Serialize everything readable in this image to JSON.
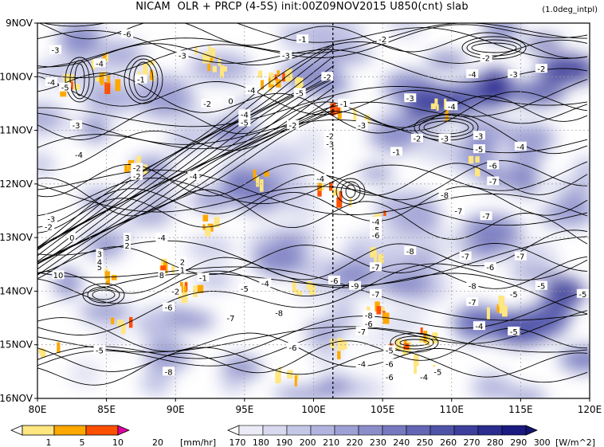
{
  "chart_data": {
    "type": "heatmap",
    "title": "NICAM  OLR + PRCP (4-5S) init:00Z09NOV2015 U850(cnt) slab",
    "note": "(1.0deg_intpl)",
    "x": {
      "min": 80,
      "max": 120,
      "ticks": [
        80,
        85,
        90,
        95,
        100,
        105,
        110,
        115,
        120
      ],
      "tick_labels": [
        "80E",
        "85E",
        "90E",
        "95E",
        "100E",
        "105E",
        "110E",
        "115E",
        "120E"
      ]
    },
    "y": {
      "dates": [
        "9NOV",
        "10NOV",
        "11NOV",
        "12NOV",
        "13NOV",
        "14NOV",
        "15NOV",
        "16NOV"
      ],
      "tick_labels": [
        "9NOV",
        "10NOV",
        "11NOV",
        "12NOV",
        "13NOV",
        "14NOV",
        "15NOV",
        "16NOV"
      ]
    },
    "reference_longitude": 101.4,
    "prcp_colorbar": {
      "levels": [
        "1",
        "5",
        "10",
        "20"
      ],
      "unit": "[mm/hr]",
      "colors": [
        "#ffe680",
        "#ffa800",
        "#ff4f00",
        "#e0009e"
      ]
    },
    "olr_colorbar": {
      "levels": [
        "170",
        "180",
        "190",
        "200",
        "210",
        "220",
        "230",
        "240",
        "250",
        "260",
        "270",
        "280",
        "290",
        "300"
      ],
      "unit": "[W/m^2]",
      "colors": [
        "#ebebf7",
        "#d8d9ef",
        "#c5c7e7",
        "#b1b4de",
        "#9da0d4",
        "#8a8dca",
        "#7679bf",
        "#6266b4",
        "#4f53a8",
        "#3c3f9c",
        "#2a2c8e",
        "#1a1b80"
      ]
    },
    "contour_labels": [
      {
        "lon": 86.5,
        "day": 9.2,
        "text": "-6"
      },
      {
        "lon": 81.3,
        "day": 9.5,
        "text": "-3"
      },
      {
        "lon": 84.5,
        "day": 9.75,
        "text": "-4"
      },
      {
        "lon": 81.0,
        "day": 10.1,
        "text": "-4"
      },
      {
        "lon": 82.0,
        "day": 10.2,
        "text": "-5"
      },
      {
        "lon": 87.5,
        "day": 10.05,
        "text": "-1"
      },
      {
        "lon": 90.5,
        "day": 9.6,
        "text": "-3"
      },
      {
        "lon": 95.5,
        "day": 10.25,
        "text": "-4"
      },
      {
        "lon": 92.3,
        "day": 10.5,
        "text": "-2"
      },
      {
        "lon": 94.0,
        "day": 10.45,
        "text": "0"
      },
      {
        "lon": 95.0,
        "day": 10.7,
        "text": "-4"
      },
      {
        "lon": 95.0,
        "day": 10.85,
        "text": "-5"
      },
      {
        "lon": 98.0,
        "day": 9.6,
        "text": "-3"
      },
      {
        "lon": 99.2,
        "day": 9.3,
        "text": "-1"
      },
      {
        "lon": 99.0,
        "day": 10.3,
        "text": "-5"
      },
      {
        "lon": 101.0,
        "day": 10.0,
        "text": "-2"
      },
      {
        "lon": 102.2,
        "day": 10.5,
        "text": "-1"
      },
      {
        "lon": 98.5,
        "day": 10.9,
        "text": "-2"
      },
      {
        "lon": 101.2,
        "day": 11.1,
        "text": "-2"
      },
      {
        "lon": 101.2,
        "day": 11.25,
        "text": "-3"
      },
      {
        "lon": 103.5,
        "day": 10.9,
        "text": "-3"
      },
      {
        "lon": 105.0,
        "day": 9.3,
        "text": "-2"
      },
      {
        "lon": 107.0,
        "day": 10.4,
        "text": "-3"
      },
      {
        "lon": 110.0,
        "day": 10.55,
        "text": "-4"
      },
      {
        "lon": 112.5,
        "day": 9.65,
        "text": "-2"
      },
      {
        "lon": 114.5,
        "day": 9.95,
        "text": "-3"
      },
      {
        "lon": 116.5,
        "day": 9.85,
        "text": "-2"
      },
      {
        "lon": 111.5,
        "day": 9.95,
        "text": "-4"
      },
      {
        "lon": 82.8,
        "day": 10.9,
        "text": "-3"
      },
      {
        "lon": 83.0,
        "day": 11.45,
        "text": "-4"
      },
      {
        "lon": 87.2,
        "day": 11.7,
        "text": "-2"
      },
      {
        "lon": 87.2,
        "day": 11.85,
        "text": "-2"
      },
      {
        "lon": 91.3,
        "day": 11.85,
        "text": "-4"
      },
      {
        "lon": 100.5,
        "day": 11.9,
        "text": "-4"
      },
      {
        "lon": 106.0,
        "day": 11.4,
        "text": "-1"
      },
      {
        "lon": 107.5,
        "day": 11.15,
        "text": "-2"
      },
      {
        "lon": 109.5,
        "day": 11.15,
        "text": "-3"
      },
      {
        "lon": 112.0,
        "day": 11.1,
        "text": "-3"
      },
      {
        "lon": 112.0,
        "day": 11.35,
        "text": "-5"
      },
      {
        "lon": 115.0,
        "day": 11.3,
        "text": "-4"
      },
      {
        "lon": 113.0,
        "day": 11.65,
        "text": "-6"
      },
      {
        "lon": 113.0,
        "day": 11.95,
        "text": "-7"
      },
      {
        "lon": 109.5,
        "day": 12.2,
        "text": "-8"
      },
      {
        "lon": 110.5,
        "day": 12.5,
        "text": "-7"
      },
      {
        "lon": 112.5,
        "day": 12.6,
        "text": "-7"
      },
      {
        "lon": 81.0,
        "day": 12.65,
        "text": "-3"
      },
      {
        "lon": 80.8,
        "day": 12.8,
        "text": "-2"
      },
      {
        "lon": 82.5,
        "day": 13.0,
        "text": "0"
      },
      {
        "lon": 86.5,
        "day": 13.0,
        "text": "3"
      },
      {
        "lon": 86.5,
        "day": 13.15,
        "text": "2"
      },
      {
        "lon": 84.5,
        "day": 13.3,
        "text": "3"
      },
      {
        "lon": 84.5,
        "day": 13.55,
        "text": "5"
      },
      {
        "lon": 84.5,
        "day": 13.45,
        "text": "4"
      },
      {
        "lon": 81.5,
        "day": 13.7,
        "text": "10"
      },
      {
        "lon": 89.0,
        "day": 13.0,
        "text": "-4"
      },
      {
        "lon": 90.5,
        "day": 13.45,
        "text": "2"
      },
      {
        "lon": 90.5,
        "day": 13.6,
        "text": "1"
      },
      {
        "lon": 89.0,
        "day": 13.7,
        "text": "8"
      },
      {
        "lon": 92.0,
        "day": 13.75,
        "text": "-1"
      },
      {
        "lon": 90.0,
        "day": 14.0,
        "text": "-2"
      },
      {
        "lon": 95.0,
        "day": 13.95,
        "text": "-5"
      },
      {
        "lon": 96.5,
        "day": 13.85,
        "text": "-4"
      },
      {
        "lon": 89.5,
        "day": 14.3,
        "text": "-6"
      },
      {
        "lon": 94.0,
        "day": 14.5,
        "text": "-7"
      },
      {
        "lon": 97.5,
        "day": 14.4,
        "text": "-8"
      },
      {
        "lon": 101.5,
        "day": 13.8,
        "text": "-6"
      },
      {
        "lon": 103.0,
        "day": 13.9,
        "text": "-9"
      },
      {
        "lon": 104.5,
        "day": 13.55,
        "text": "-7"
      },
      {
        "lon": 104.5,
        "day": 14.05,
        "text": "-7"
      },
      {
        "lon": 104.5,
        "day": 12.7,
        "text": "-4"
      },
      {
        "lon": 104.5,
        "day": 12.85,
        "text": "-5"
      },
      {
        "lon": 104.5,
        "day": 12.95,
        "text": "-6"
      },
      {
        "lon": 107.0,
        "day": 13.25,
        "text": "-8"
      },
      {
        "lon": 111.5,
        "day": 13.9,
        "text": "-8"
      },
      {
        "lon": 111.5,
        "day": 14.2,
        "text": "-7"
      },
      {
        "lon": 114.5,
        "day": 14.05,
        "text": "-5"
      },
      {
        "lon": 116.5,
        "day": 13.9,
        "text": "-5"
      },
      {
        "lon": 119.5,
        "day": 14.05,
        "text": "-5"
      },
      {
        "lon": 112.0,
        "day": 14.65,
        "text": "-4"
      },
      {
        "lon": 114.5,
        "day": 14.75,
        "text": "-5"
      },
      {
        "lon": 111.0,
        "day": 13.35,
        "text": "-7"
      },
      {
        "lon": 115.0,
        "day": 13.35,
        "text": "-7"
      },
      {
        "lon": 112.8,
        "day": 13.55,
        "text": "-6"
      },
      {
        "lon": 103.5,
        "day": 14.75,
        "text": "-7"
      },
      {
        "lon": 104.0,
        "day": 14.6,
        "text": "-6"
      },
      {
        "lon": 104.0,
        "day": 14.45,
        "text": "-8"
      },
      {
        "lon": 98.5,
        "day": 15.05,
        "text": "-6"
      },
      {
        "lon": 105.5,
        "day": 15.1,
        "text": "-5"
      },
      {
        "lon": 105.5,
        "day": 15.35,
        "text": "-6"
      },
      {
        "lon": 103.5,
        "day": 15.35,
        "text": "-4"
      },
      {
        "lon": 105.5,
        "day": 15.6,
        "text": "-6"
      },
      {
        "lon": 108.0,
        "day": 15.6,
        "text": "-4"
      },
      {
        "lon": 109.0,
        "day": 15.5,
        "text": "-5"
      },
      {
        "lon": 89.5,
        "day": 15.5,
        "text": "-8"
      },
      {
        "lon": 84.5,
        "day": 15.1,
        "text": "-5"
      }
    ]
  }
}
